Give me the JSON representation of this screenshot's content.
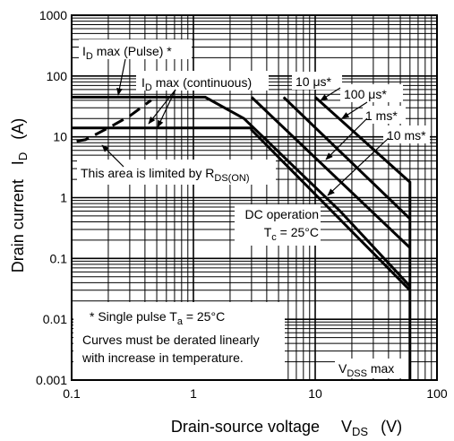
{
  "chart_data": {
    "type": "line",
    "title": "",
    "xlabel": "Drain-source voltage",
    "xlabel_symbol": "V",
    "xlabel_sub": "DS",
    "xlabel_unit": "(V)",
    "ylabel": "Drain current",
    "ylabel_symbol": "I",
    "ylabel_sub": "D",
    "ylabel_unit": "(A)",
    "x_scale": "log",
    "y_scale": "log",
    "xlim": [
      0.1,
      100
    ],
    "ylim": [
      0.001,
      1000
    ],
    "grid": true,
    "x_ticks": [
      {
        "value": 0.1,
        "label": "0.1"
      },
      {
        "value": 1,
        "label": "1"
      },
      {
        "value": 10,
        "label": "10"
      },
      {
        "value": 100,
        "label": "100"
      }
    ],
    "y_ticks": [
      {
        "value": 1000,
        "label": "1000"
      },
      {
        "value": 100,
        "label": "100"
      },
      {
        "value": 10,
        "label": "10"
      },
      {
        "value": 1,
        "label": "1"
      },
      {
        "value": 0.1,
        "label": "0.1"
      },
      {
        "value": 0.01,
        "label": "0.01"
      },
      {
        "value": 0.001,
        "label": "0.001"
      }
    ],
    "series": [
      {
        "style": "dashed",
        "points": [
          [
            0.11,
            8.5
          ],
          [
            0.13,
            9
          ],
          [
            0.2,
            14
          ],
          [
            0.3,
            22
          ],
          [
            0.45,
            40
          ]
        ]
      },
      {
        "style": "solid",
        "points": [
          [
            0.1,
            45
          ],
          [
            1.25,
            45
          ],
          [
            2.6,
            20
          ],
          [
            16,
            0.6
          ],
          [
            60,
            0.035
          ]
        ]
      },
      {
        "style": "solid",
        "points": [
          [
            0.1,
            14
          ],
          [
            3.0,
            14
          ],
          [
            3.0,
            13
          ],
          [
            60,
            0.03
          ]
        ]
      },
      {
        "style": "solid",
        "points": [
          [
            3.0,
            45
          ],
          [
            60,
            0.15
          ]
        ]
      },
      {
        "style": "solid",
        "points": [
          [
            5.5,
            45
          ],
          [
            60,
            0.45
          ]
        ]
      },
      {
        "style": "solid",
        "points": [
          [
            10,
            45
          ],
          [
            60,
            1.8
          ],
          [
            60,
            0.001
          ]
        ]
      }
    ],
    "annotations": [
      {
        "id": "id-pulse",
        "main": "I",
        "sub": "D",
        "rest": " max (Pulse) *"
      },
      {
        "id": "id-cont",
        "main": "I",
        "sub": "D",
        "rest": " max (continuous)"
      },
      {
        "id": "10us",
        "main": "10 μs*"
      },
      {
        "id": "100us",
        "main": "100 μs*"
      },
      {
        "id": "1ms",
        "main": "1 ms*"
      },
      {
        "id": "10ms",
        "main": "10 ms*"
      },
      {
        "id": "rds",
        "main": "This area is limited by R",
        "sub": "DS(ON)"
      },
      {
        "id": "dc1",
        "main": "DC operation"
      },
      {
        "id": "dc2",
        "main": "T",
        "sub": "c",
        "rest": " = 25°C"
      },
      {
        "id": "note1",
        "main": "* Single pulse T",
        "sub": "a",
        "rest": " = 25°C"
      },
      {
        "id": "note2",
        "main": "Curves must be derated linearly"
      },
      {
        "id": "note3",
        "main": "with increase in temperature."
      },
      {
        "id": "vdss",
        "main": "V",
        "sub": "DSS",
        "rest": " max"
      }
    ]
  }
}
